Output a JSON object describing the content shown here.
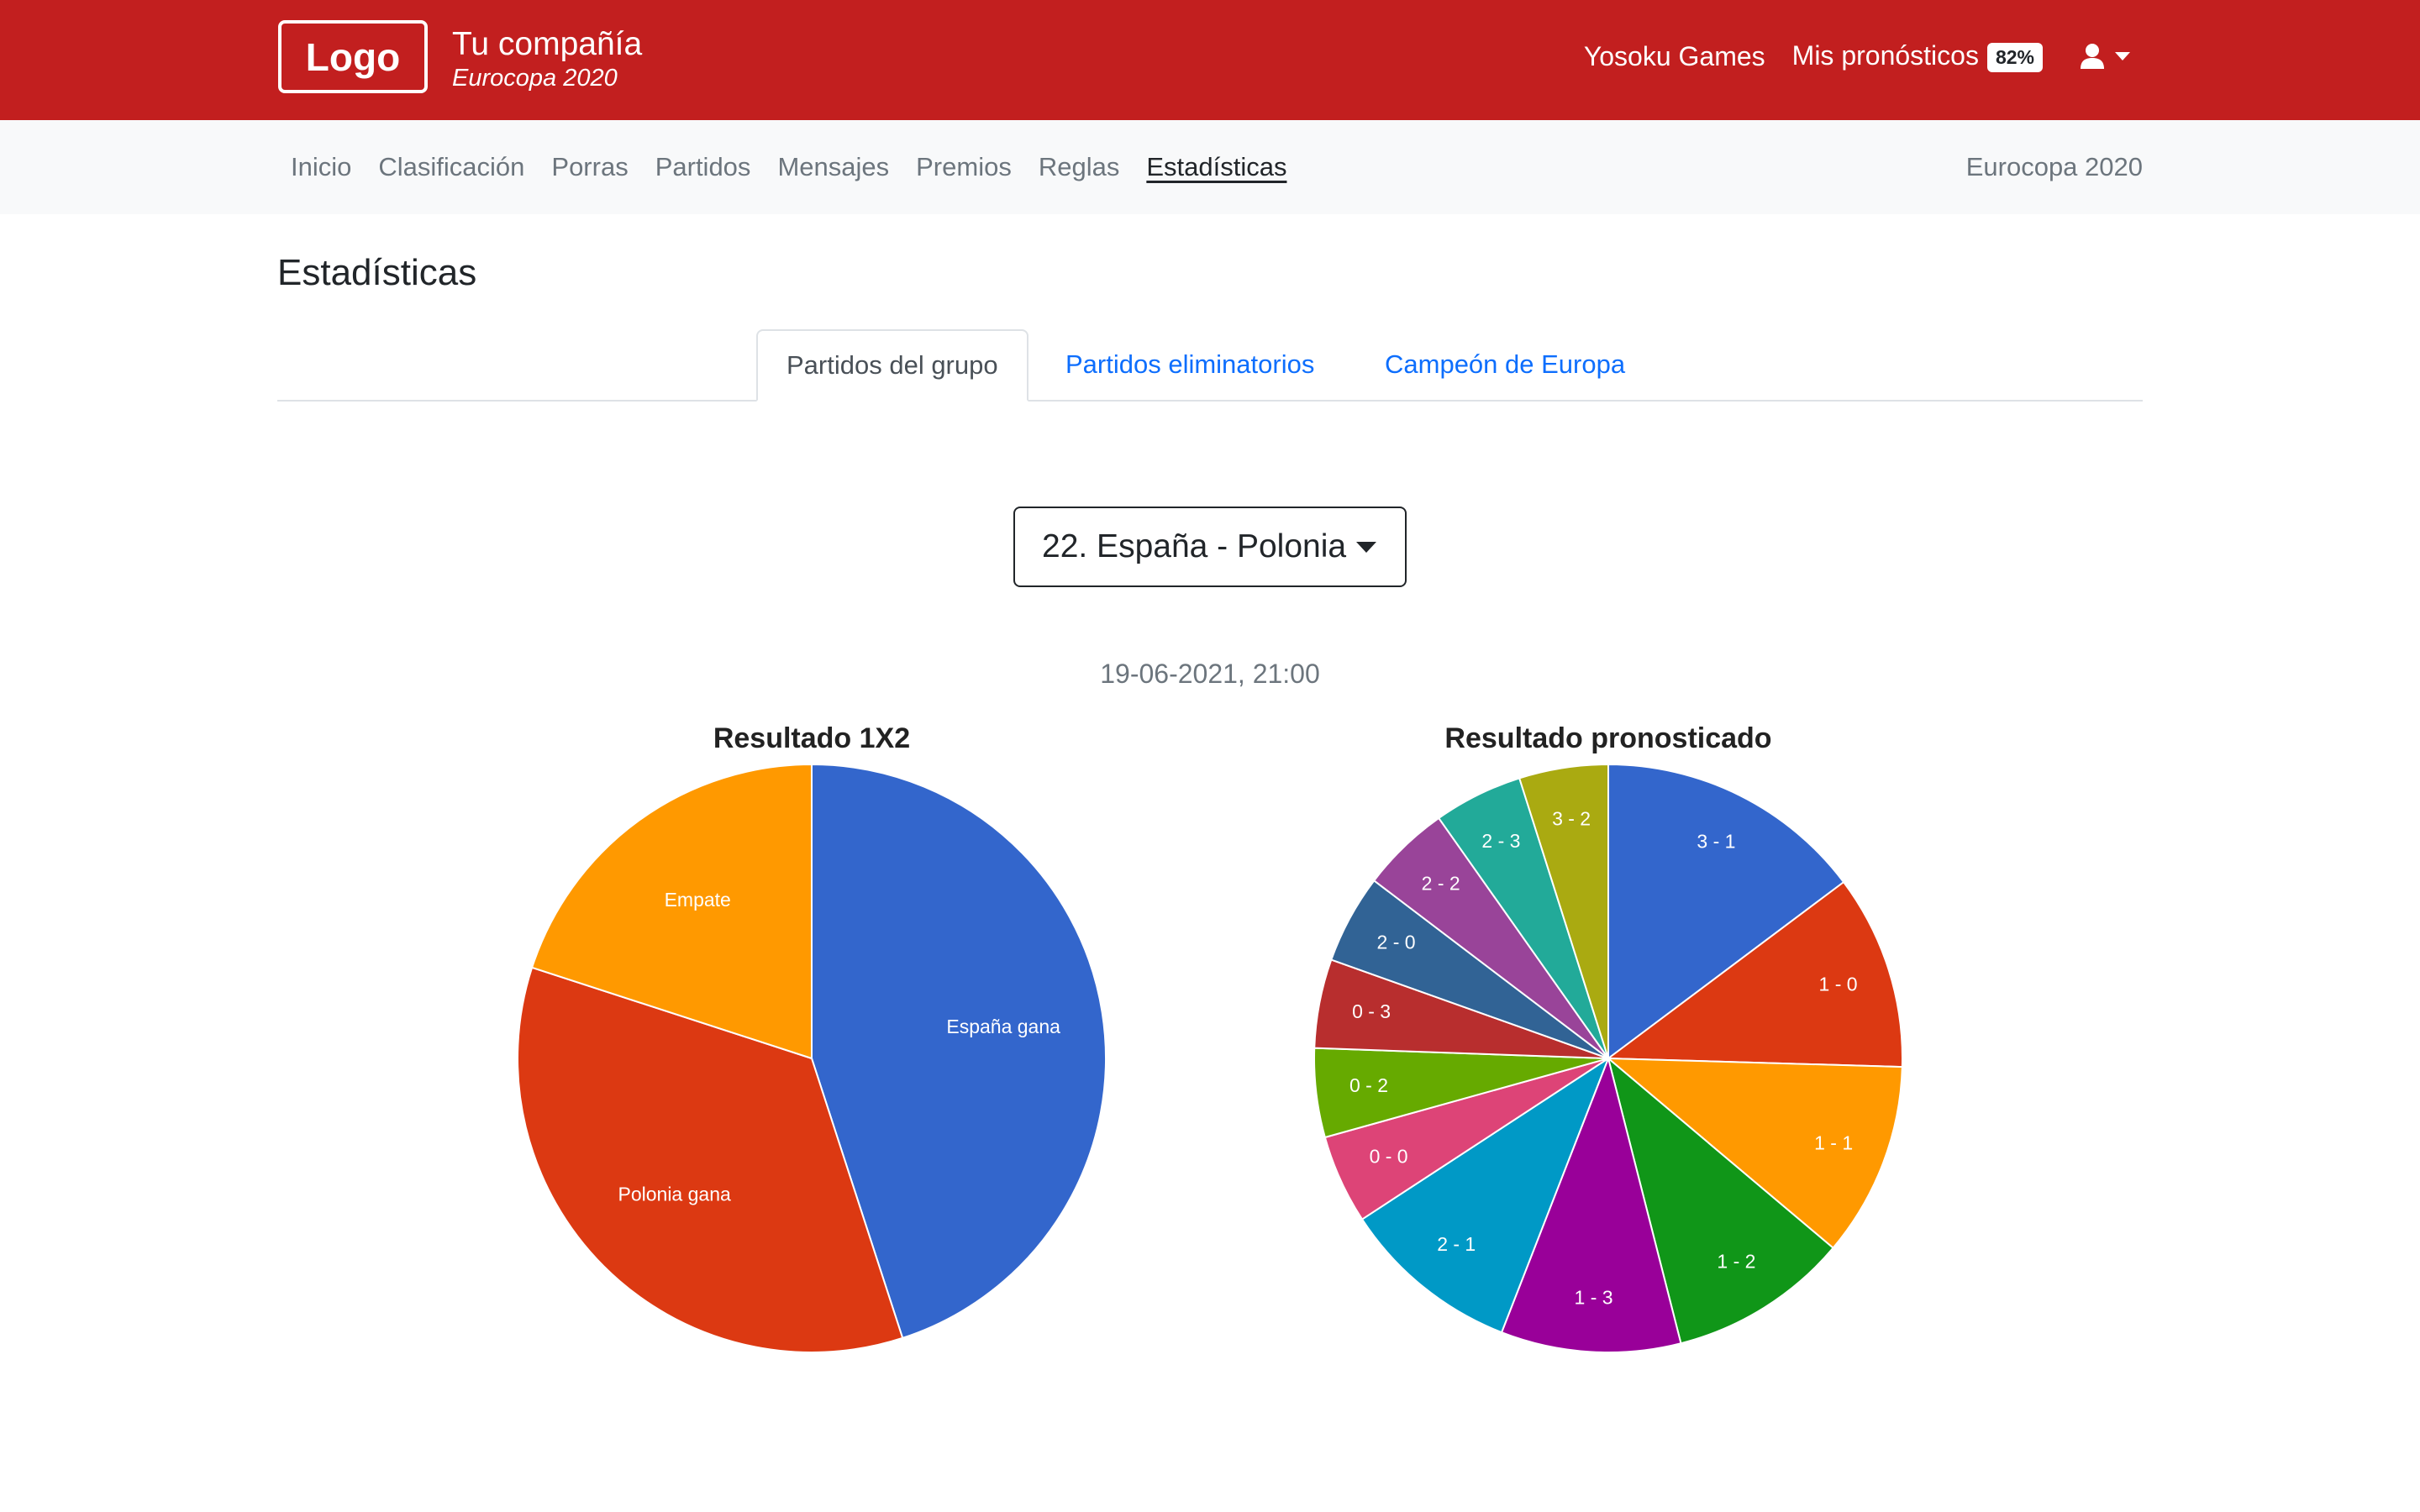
{
  "header": {
    "logo": "Logo",
    "company_name": "Tu compañía",
    "company_sub": "Eurocopa 2020",
    "links": {
      "games": "Yosoku Games",
      "predictions": "Mis pronósticos",
      "predictions_badge": "82%"
    },
    "user_icon": "user-icon"
  },
  "nav": {
    "items": [
      "Inicio",
      "Clasificación",
      "Porras",
      "Partidos",
      "Mensajes",
      "Premios",
      "Reglas",
      "Estadísticas"
    ],
    "active": "Estadísticas",
    "right": "Eurocopa 2020"
  },
  "page": {
    "title": "Estadísticas",
    "tabs": [
      "Partidos del grupo",
      "Partidos eliminatorios",
      "Campeón de Europa"
    ],
    "active_tab": "Partidos del grupo",
    "match_select": "22. España - Polonia",
    "date": "19-06-2021, 21:00"
  },
  "chart_data": [
    {
      "type": "pie",
      "title": "Resultado 1X2",
      "labels": [
        "España gana",
        "Polonia gana",
        "Empate"
      ],
      "values": [
        45,
        35,
        20
      ],
      "colors": [
        "#3366cc",
        "#dc3912",
        "#ff9900"
      ]
    },
    {
      "type": "pie",
      "title": "Resultado pronosticado",
      "labels": [
        "3 - 1",
        "1 - 0",
        "1 - 1",
        "1 - 2",
        "1 - 3",
        "2 - 1",
        "0 - 0",
        "0 - 2",
        "0 - 3",
        "2 - 0",
        "2 - 2",
        "2 - 3",
        "3 - 2"
      ],
      "values": [
        14.5,
        10.5,
        10.5,
        9.7,
        9.7,
        9.7,
        4.8,
        4.8,
        4.8,
        4.8,
        4.8,
        4.8,
        4.8
      ],
      "colors": [
        "#3366cc",
        "#dc3912",
        "#ff9900",
        "#109618",
        "#990099",
        "#0099c6",
        "#dd4477",
        "#66aa00",
        "#b82e2e",
        "#316395",
        "#994499",
        "#22aa99",
        "#aaaa11"
      ]
    }
  ]
}
